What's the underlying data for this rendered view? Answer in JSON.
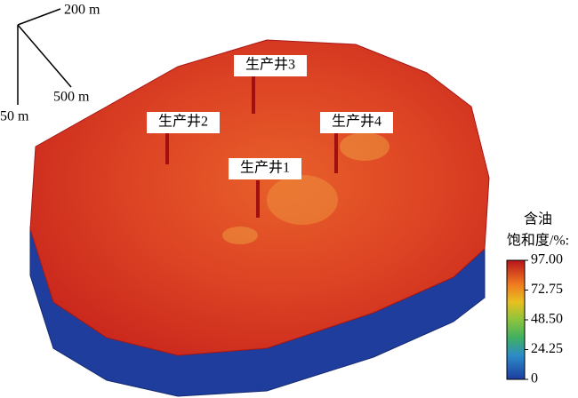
{
  "scale_axes": {
    "x": "200 m",
    "y": "500 m",
    "z": "50 m"
  },
  "wells": [
    "生产井3",
    "生产井2",
    "生产井4",
    "生产井1"
  ],
  "colorbar": {
    "title_lines": [
      "含油",
      "饱和度/%:"
    ],
    "lim": [
      0,
      97
    ],
    "ticks": [
      {
        "value": 97,
        "label": "97.00"
      },
      {
        "value": 72.75,
        "label": "72.75"
      },
      {
        "value": 48.5,
        "label": "48.50"
      },
      {
        "value": 24.25,
        "label": "24.25"
      },
      0
    ]
  }
}
